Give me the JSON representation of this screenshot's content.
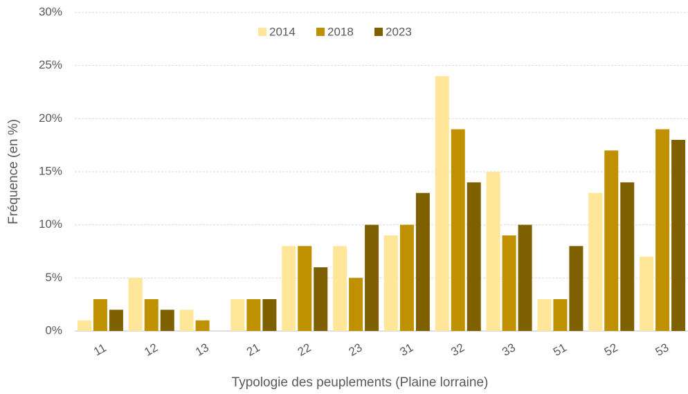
{
  "chart_data": {
    "type": "bar",
    "x_label": "Typologie des peuplements (Plaine lorraine)",
    "y_label": "Fréquence (en %)",
    "categories": [
      "11",
      "12",
      "13",
      "21",
      "22",
      "23",
      "31",
      "32",
      "33",
      "51",
      "52",
      "53"
    ],
    "series": [
      {
        "name": "2014",
        "color": "#ffe699",
        "values": [
          1,
          5,
          2,
          3,
          8,
          8,
          9,
          24,
          15,
          3,
          13,
          7
        ]
      },
      {
        "name": "2018",
        "color": "#bf9000",
        "values": [
          3,
          3,
          1,
          3,
          8,
          5,
          10,
          19,
          9,
          3,
          17,
          19
        ]
      },
      {
        "name": "2023",
        "color": "#7f6000",
        "values": [
          2,
          2,
          0,
          3,
          6,
          10,
          13,
          14,
          10,
          8,
          14,
          18
        ]
      }
    ],
    "ylim": [
      0,
      30
    ],
    "yticks": [
      {
        "value": 0,
        "label": "0%"
      },
      {
        "value": 5,
        "label": "5%"
      },
      {
        "value": 10,
        "label": "10%"
      },
      {
        "value": 15,
        "label": "15%"
      },
      {
        "value": 20,
        "label": "20%"
      },
      {
        "value": 25,
        "label": "25%"
      },
      {
        "value": 30,
        "label": "30%"
      }
    ],
    "grid": true,
    "legend": "top"
  }
}
